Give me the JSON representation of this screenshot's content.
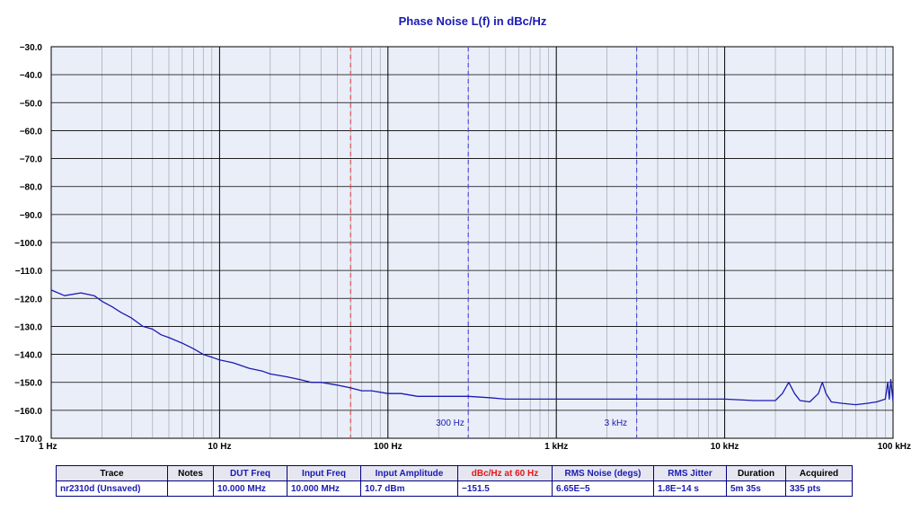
{
  "chart_data": {
    "type": "line",
    "title": "Phase Noise L(f) in dBc/Hz",
    "xscale": "log",
    "xlim": [
      1,
      100000
    ],
    "ylim": [
      -170,
      -30
    ],
    "x_tick_labels": [
      "1 Hz",
      "10 Hz",
      "100 Hz",
      "1 kHz",
      "10 kHz",
      "100 kHz"
    ],
    "y_tick_labels": [
      "-30.0",
      "-40.0",
      "-50.0",
      "-60.0",
      "-70.0",
      "-80.0",
      "-90.0",
      "-100.0",
      "-110.0",
      "-120.0",
      "-130.0",
      "-140.0",
      "-150.0",
      "-160.0",
      "-170.0"
    ],
    "grid": true,
    "markers": [
      {
        "x": 60,
        "style": "dashed",
        "color": "#e05050",
        "label": ""
      },
      {
        "x": 300,
        "style": "dashed",
        "color": "#5050e0",
        "label": "300 Hz"
      },
      {
        "x": 3000,
        "style": "dashed",
        "color": "#5050e0",
        "label": "3 kHz"
      }
    ],
    "series": [
      {
        "color": "#1a1ab4",
        "x": [
          1,
          1.2,
          1.5,
          1.8,
          2,
          2.3,
          2.6,
          3,
          3.5,
          4,
          4.5,
          5,
          6,
          7,
          8,
          9,
          10,
          12,
          15,
          18,
          20,
          25,
          30,
          35,
          40,
          50,
          60,
          70,
          80,
          100,
          120,
          150,
          200,
          250,
          300,
          400,
          500,
          700,
          1000,
          1500,
          2000,
          2500,
          3000,
          4000,
          5000,
          7000,
          10000,
          15000,
          20000,
          22000,
          24000,
          26000,
          28000,
          32000,
          36000,
          38000,
          40000,
          43000,
          50000,
          60000,
          70000,
          80000,
          90000,
          93000,
          95000,
          97000,
          100000
        ],
        "y": [
          -117,
          -119,
          -118,
          -119,
          -121,
          -123,
          -125,
          -127,
          -130,
          -131,
          -133,
          -134,
          -136,
          -138,
          -140,
          -141,
          -142,
          -143,
          -145,
          -146,
          -147,
          -148,
          -149,
          -150,
          -150,
          -151,
          -152,
          -153,
          -153,
          -154,
          -154,
          -155,
          -155,
          -155,
          -155,
          -155.5,
          -156,
          -156,
          -156,
          -156,
          -156,
          -156,
          -156,
          -156,
          -156,
          -156,
          -156,
          -156.5,
          -156.5,
          -154,
          -150,
          -154,
          -156.5,
          -157,
          -154,
          -150,
          -154,
          -157,
          -157.5,
          -158,
          -157.5,
          -157,
          -156,
          -150,
          -156,
          -149,
          -157
        ]
      }
    ]
  },
  "stats_table": {
    "headers": [
      "Trace",
      "Notes",
      "DUT Freq",
      "Input Freq",
      "Input Amplitude",
      "dBc/Hz at 60 Hz",
      "RMS Noise (degs)",
      "RMS Jitter",
      "Duration",
      "Acquired"
    ],
    "values": [
      "nr2310d (Unsaved)",
      "",
      "10.000 MHz",
      "10.000 MHz",
      "10.7 dBm",
      "−151.5",
      "6.65E−5",
      "1.8E−14 s",
      "5m 35s",
      "335 pts"
    ],
    "header_colors": [
      "#000000",
      "#000000",
      "#1a1ab4",
      "#1a1ab4",
      "#1a1ab4",
      "#e01818",
      "#1a1ab4",
      "#1a1ab4",
      "#000000",
      "#000000"
    ]
  }
}
